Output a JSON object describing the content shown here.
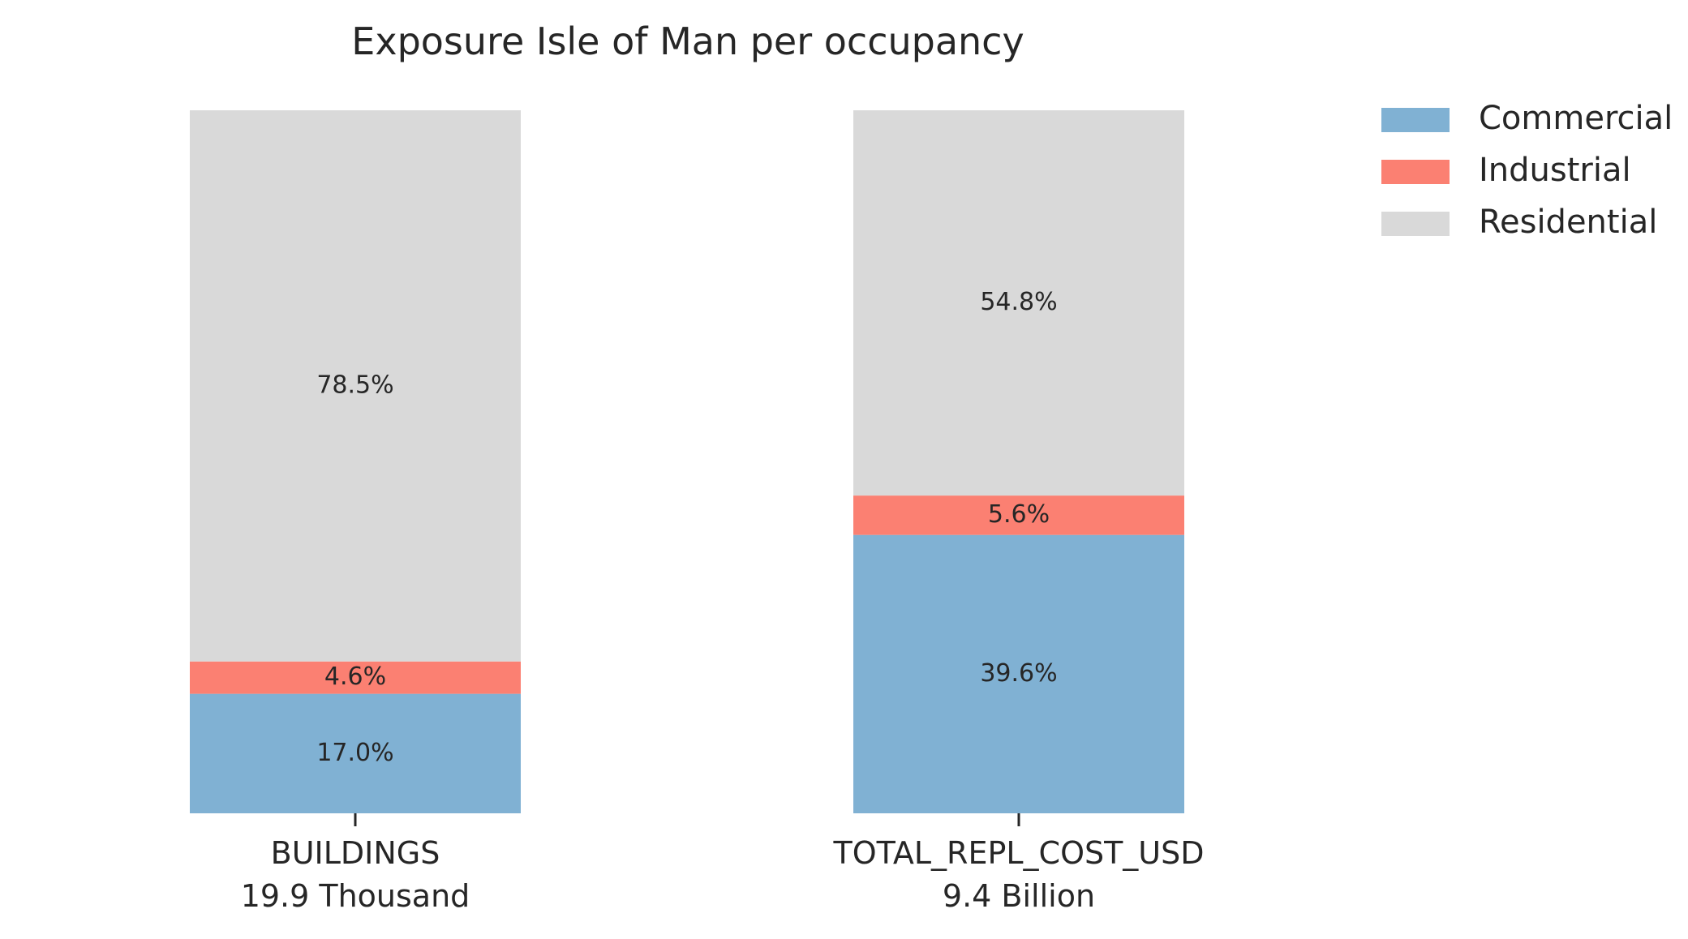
{
  "chart_data": {
    "type": "bar",
    "stacked": true,
    "normalized_percent": true,
    "title": "Exposure Isle of Man per occupancy",
    "categories": [
      "BUILDINGS",
      "TOTAL_REPL_COST_USD"
    ],
    "category_totals": [
      "19.9 Thousand",
      "9.4 Billion"
    ],
    "series": [
      {
        "name": "Commercial",
        "color": "#80B1D3",
        "values": [
          17.0,
          39.6
        ],
        "labels": [
          "17.0%",
          "39.6%"
        ]
      },
      {
        "name": "Industrial",
        "color": "#FB8072",
        "values": [
          4.6,
          5.6
        ],
        "labels": [
          "4.6%",
          "5.6%"
        ]
      },
      {
        "name": "Residential",
        "color": "#D9D9D9",
        "values": [
          78.5,
          54.8
        ],
        "labels": [
          "78.5%",
          "54.8%"
        ]
      }
    ],
    "ylim": [
      0,
      100
    ],
    "y_axis_visible": false,
    "grid": false,
    "legend_position": "top-right, outside plot"
  }
}
